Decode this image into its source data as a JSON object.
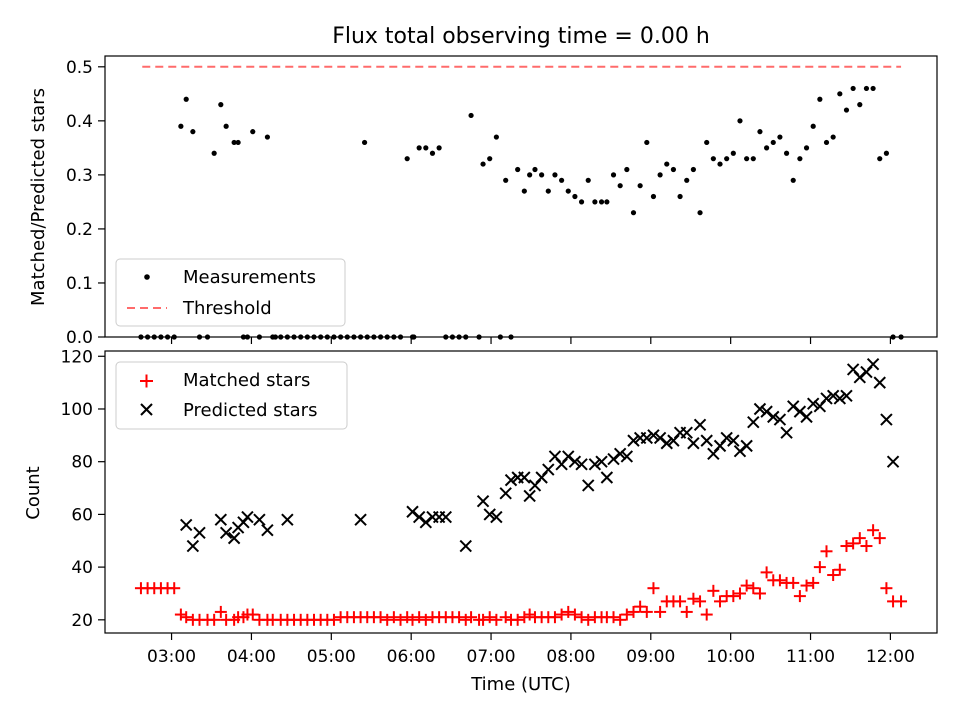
{
  "title": "Flux total observing time = 0.00 h",
  "chart_data": [
    {
      "type": "scatter",
      "ylabel": "Matched/Predicted stars",
      "ylim": [
        0,
        0.52
      ],
      "yticks": [
        "0.0",
        "0.1",
        "0.2",
        "0.3",
        "0.4",
        "0.5"
      ],
      "legend_position": "lower-left",
      "threshold": {
        "name": "Threshold",
        "value": 0.5,
        "x_range": [
          "02:38",
          "12:08"
        ],
        "color": "#ff6b6b"
      },
      "series": [
        {
          "name": "Measurements",
          "color": "#000000",
          "x": [
            "02:37",
            "02:42",
            "02:47",
            "02:52",
            "02:57",
            "03:02",
            "03:07",
            "03:11",
            "03:16",
            "03:21",
            "03:27",
            "03:32",
            "03:37",
            "03:41",
            "03:47",
            "03:50",
            "03:54",
            "03:57",
            "04:01",
            "04:06",
            "04:12",
            "04:16",
            "04:18",
            "04:22",
            "04:27",
            "04:32",
            "04:37",
            "04:42",
            "04:47",
            "04:52",
            "04:57",
            "05:02",
            "05:07",
            "05:12",
            "05:17",
            "05:22",
            "05:25",
            "05:27",
            "05:32",
            "05:37",
            "05:42",
            "05:47",
            "05:52",
            "05:57",
            "06:01",
            "06:02",
            "06:06",
            "06:11",
            "06:16",
            "06:21",
            "06:26",
            "06:31",
            "06:36",
            "06:41",
            "06:45",
            "06:51",
            "06:54",
            "06:59",
            "07:04",
            "07:07",
            "07:11",
            "07:15",
            "07:20",
            "07:25",
            "07:29",
            "07:33",
            "07:38",
            "07:43",
            "07:48",
            "07:53",
            "07:58",
            "08:03",
            "08:08",
            "08:13",
            "08:18",
            "08:23",
            "08:27",
            "08:32",
            "08:37",
            "08:42",
            "08:47",
            "08:52",
            "08:57",
            "09:02",
            "09:07",
            "09:12",
            "09:17",
            "09:22",
            "09:27",
            "09:32",
            "09:37",
            "09:42",
            "09:47",
            "09:52",
            "09:57",
            "10:02",
            "10:07",
            "10:12",
            "10:17",
            "10:22",
            "10:27",
            "10:32",
            "10:37",
            "10:42",
            "10:47",
            "10:52",
            "10:57",
            "11:02",
            "11:07",
            "11:12",
            "11:17",
            "11:22",
            "11:27",
            "11:32",
            "11:37",
            "11:42",
            "11:47",
            "11:52",
            "11:57",
            "12:02",
            "12:08"
          ],
          "y": [
            0,
            0,
            0,
            0,
            0,
            0,
            0.39,
            0.44,
            0.38,
            0,
            0,
            0.34,
            0.43,
            0.39,
            0.36,
            0.36,
            0,
            0,
            0.38,
            0,
            0.37,
            0,
            0,
            0,
            0,
            0,
            0,
            0,
            0,
            0,
            0,
            0,
            0,
            0,
            0,
            0,
            0.36,
            0,
            0,
            0,
            0,
            0,
            0,
            0.33,
            0,
            0,
            0.35,
            0.35,
            0.34,
            0.35,
            0,
            0,
            0,
            0,
            0.41,
            0,
            0.32,
            0.33,
            0.37,
            0,
            0.29,
            0,
            0.31,
            0.27,
            0.3,
            0.31,
            0.3,
            0.27,
            0.3,
            0.29,
            0.27,
            0.26,
            0.25,
            0.29,
            0.25,
            0.25,
            0.25,
            0.3,
            0.28,
            0.31,
            0.23,
            0.28,
            0.36,
            0.26,
            0.3,
            0.32,
            0.31,
            0.26,
            0.29,
            0.31,
            0.23,
            0.36,
            0.33,
            0.32,
            0.33,
            0.34,
            0.4,
            0.33,
            0.33,
            0.38,
            0.35,
            0.36,
            0.37,
            0.34,
            0.29,
            0.33,
            0.35,
            0.39,
            0.44,
            0.36,
            0.37,
            0.45,
            0.42,
            0.46,
            0.43,
            0.46,
            0.46,
            0.33,
            0.34,
            0,
            0
          ]
        }
      ]
    },
    {
      "type": "scatter",
      "xlabel": "Time (UTC)",
      "ylabel": "Count",
      "xlim": [
        "02:10",
        "12:35"
      ],
      "ylim": [
        15,
        122
      ],
      "xticks": [
        "03:00",
        "04:00",
        "05:00",
        "06:00",
        "07:00",
        "08:00",
        "09:00",
        "10:00",
        "11:00",
        "12:00"
      ],
      "yticks": [
        "20",
        "40",
        "60",
        "80",
        "100",
        "120"
      ],
      "legend_position": "upper-left",
      "series": [
        {
          "name": "Matched stars",
          "color": "#ff0000",
          "marker": "+",
          "x": [
            "02:37",
            "02:42",
            "02:47",
            "02:52",
            "02:57",
            "03:02",
            "03:07",
            "03:11",
            "03:16",
            "03:21",
            "03:27",
            "03:32",
            "03:37",
            "03:41",
            "03:47",
            "03:50",
            "03:54",
            "03:57",
            "04:01",
            "04:06",
            "04:12",
            "04:16",
            "04:22",
            "04:27",
            "04:32",
            "04:37",
            "04:42",
            "04:47",
            "04:52",
            "04:57",
            "05:02",
            "05:07",
            "05:12",
            "05:17",
            "05:22",
            "05:27",
            "05:32",
            "05:37",
            "05:42",
            "05:47",
            "05:52",
            "05:57",
            "06:01",
            "06:06",
            "06:11",
            "06:16",
            "06:21",
            "06:26",
            "06:31",
            "06:36",
            "06:41",
            "06:45",
            "06:51",
            "06:54",
            "06:59",
            "07:04",
            "07:11",
            "07:15",
            "07:20",
            "07:25",
            "07:29",
            "07:33",
            "07:38",
            "07:43",
            "07:48",
            "07:53",
            "07:58",
            "08:03",
            "08:08",
            "08:13",
            "08:18",
            "08:23",
            "08:27",
            "08:32",
            "08:37",
            "08:42",
            "08:47",
            "08:52",
            "08:57",
            "09:02",
            "09:07",
            "09:12",
            "09:17",
            "09:22",
            "09:27",
            "09:32",
            "09:37",
            "09:42",
            "09:47",
            "09:52",
            "09:57",
            "10:02",
            "10:07",
            "10:12",
            "10:17",
            "10:22",
            "10:27",
            "10:32",
            "10:37",
            "10:42",
            "10:47",
            "10:52",
            "10:57",
            "11:02",
            "11:07",
            "11:12",
            "11:17",
            "11:22",
            "11:27",
            "11:32",
            "11:37",
            "11:42",
            "11:47",
            "11:52",
            "11:57",
            "12:02",
            "12:08"
          ],
          "y": [
            32,
            32,
            32,
            32,
            32,
            32,
            22,
            21,
            20,
            20,
            20,
            20,
            23,
            20,
            20,
            21,
            21,
            22,
            22,
            20,
            20,
            20,
            20,
            20,
            20,
            20,
            20,
            20,
            20,
            20,
            20,
            21,
            21,
            21,
            21,
            21,
            21,
            21,
            20,
            21,
            20,
            21,
            20,
            21,
            20,
            21,
            21,
            21,
            21,
            21,
            20,
            21,
            20,
            20,
            21,
            20,
            21,
            20,
            20,
            21,
            22,
            21,
            21,
            21,
            21,
            22,
            23,
            22,
            21,
            20,
            21,
            21,
            21,
            21,
            20,
            22,
            23,
            25,
            23,
            32,
            23,
            27,
            27,
            27,
            23,
            28,
            27,
            22,
            31,
            27,
            29,
            29,
            30,
            33,
            32,
            30,
            38,
            35,
            35,
            34,
            34,
            29,
            33,
            34,
            40,
            46,
            37,
            39,
            48,
            49,
            51,
            48,
            54,
            51,
            32,
            27,
            27
          ]
        },
        {
          "name": "Predicted stars",
          "color": "#000000",
          "marker": "x",
          "x": [
            "03:11",
            "03:16",
            "03:21",
            "03:37",
            "03:41",
            "03:47",
            "03:50",
            "03:54",
            "03:57",
            "04:06",
            "04:12",
            "04:27",
            "05:22",
            "06:01",
            "06:06",
            "06:11",
            "06:16",
            "06:21",
            "06:26",
            "06:41",
            "06:54",
            "06:59",
            "07:04",
            "07:11",
            "07:15",
            "07:20",
            "07:25",
            "07:29",
            "07:33",
            "07:38",
            "07:43",
            "07:48",
            "07:53",
            "07:58",
            "08:03",
            "08:08",
            "08:13",
            "08:18",
            "08:23",
            "08:27",
            "08:32",
            "08:37",
            "08:42",
            "08:47",
            "08:52",
            "08:57",
            "09:02",
            "09:07",
            "09:12",
            "09:17",
            "09:22",
            "09:27",
            "09:32",
            "09:37",
            "09:42",
            "09:47",
            "09:52",
            "09:57",
            "10:02",
            "10:07",
            "10:12",
            "10:17",
            "10:22",
            "10:27",
            "10:32",
            "10:37",
            "10:42",
            "10:47",
            "10:52",
            "10:57",
            "11:02",
            "11:07",
            "11:12",
            "11:17",
            "11:22",
            "11:27",
            "11:32",
            "11:37",
            "11:42",
            "11:47",
            "11:52",
            "11:57",
            "12:02"
          ],
          "y": [
            56,
            48,
            53,
            58,
            53,
            51,
            55,
            57,
            59,
            58,
            54,
            58,
            58,
            61,
            59,
            57,
            59,
            59,
            59,
            48,
            65,
            60,
            59,
            68,
            73,
            74,
            74,
            67,
            71,
            74,
            77,
            82,
            79,
            82,
            80,
            79,
            71,
            79,
            80,
            74,
            81,
            83,
            82,
            88,
            89,
            89,
            90,
            89,
            87,
            88,
            91,
            91,
            87,
            94,
            88,
            83,
            86,
            89,
            88,
            84,
            86,
            95,
            100,
            99,
            97,
            96,
            91,
            101,
            99,
            97,
            102,
            101,
            104,
            105,
            104,
            105,
            115,
            112,
            114,
            117,
            110,
            96,
            80
          ]
        }
      ]
    }
  ]
}
